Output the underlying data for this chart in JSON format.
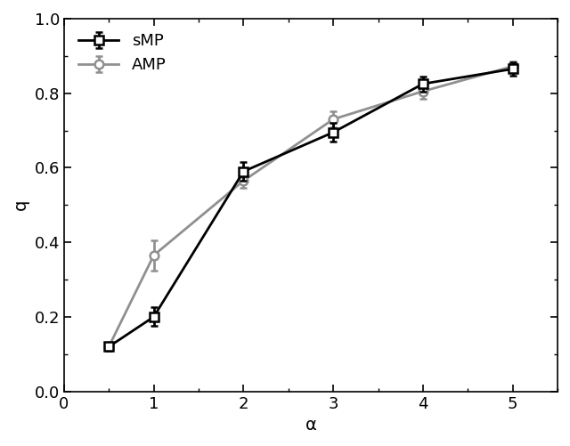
{
  "sMP_x": [
    0.5,
    1.0,
    2.0,
    3.0,
    4.0,
    5.0
  ],
  "sMP_y": [
    0.12,
    0.2,
    0.59,
    0.695,
    0.825,
    0.865
  ],
  "sMP_yerr": [
    0.01,
    0.025,
    0.025,
    0.025,
    0.02,
    0.018
  ],
  "AMP_x": [
    0.5,
    1.0,
    2.0,
    3.0,
    4.0,
    5.0
  ],
  "AMP_y": [
    0.12,
    0.365,
    0.565,
    0.73,
    0.805,
    0.872
  ],
  "AMP_yerr": [
    0.01,
    0.04,
    0.018,
    0.022,
    0.02,
    0.012
  ],
  "sMP_color": "#000000",
  "AMP_color": "#909090",
  "sMP_label": "sMP",
  "AMP_label": "AMP",
  "xlabel": "α",
  "ylabel": "q",
  "xlim": [
    0.0,
    5.5
  ],
  "ylim": [
    0.0,
    1.0
  ],
  "xticks": [
    0,
    1,
    2,
    3,
    4,
    5
  ],
  "yticks": [
    0.0,
    0.2,
    0.4,
    0.6,
    0.8,
    1.0
  ],
  "figsize": [
    6.4,
    5.01
  ],
  "dpi": 100,
  "linewidth": 2.0,
  "markersize": 7,
  "capsize": 3,
  "legend_loc": "upper left",
  "legend_fontsize": 13,
  "axis_fontsize": 14,
  "tick_fontsize": 13
}
